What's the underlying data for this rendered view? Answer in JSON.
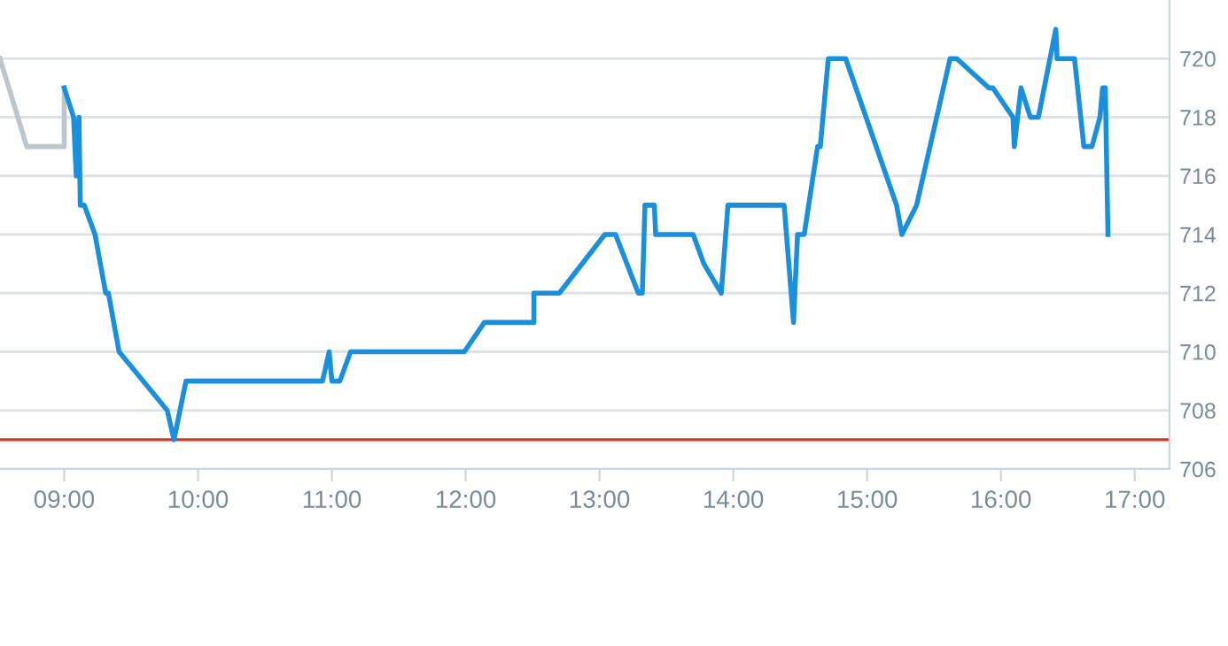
{
  "chart_data": {
    "type": "line",
    "series": [
      {
        "color": "#bcc6cc",
        "x": [
          8.52,
          8.72,
          9.0,
          9.0
        ],
        "values": [
          720,
          717,
          717,
          719
        ]
      },
      {
        "color": "#1a8fdc",
        "x": [
          9.0,
          9.07,
          9.09,
          9.11,
          9.12,
          9.15,
          9.23,
          9.31,
          9.33,
          9.41,
          9.77,
          9.82,
          9.91,
          10.93,
          10.98,
          11.0,
          11.06,
          11.14,
          11.99,
          12.14,
          12.51,
          12.51,
          12.7,
          13.04,
          13.12,
          13.29,
          13.32,
          13.34,
          13.41,
          13.42,
          13.7,
          13.78,
          13.91,
          13.96,
          14.38,
          14.45,
          14.48,
          14.53,
          14.63,
          14.65,
          14.71,
          14.84,
          15.22,
          15.26,
          15.37,
          15.62,
          15.67,
          15.91,
          15.94,
          16.09,
          16.1,
          16.15,
          16.22,
          16.28,
          16.41,
          16.42,
          16.55,
          16.62,
          16.68,
          16.74,
          16.76,
          16.78,
          16.8
        ],
        "values": [
          719,
          718,
          716,
          718,
          715,
          715,
          714,
          712,
          712,
          710,
          708,
          707,
          709,
          709,
          710,
          709,
          709,
          710,
          710,
          711,
          711,
          712,
          712,
          714,
          714,
          712,
          712,
          715,
          715,
          714,
          714,
          713,
          712,
          715,
          715,
          711,
          714,
          714,
          717,
          717,
          720,
          720,
          715,
          714,
          715,
          720,
          720,
          719,
          719,
          718,
          717,
          719,
          718,
          718,
          721,
          720,
          720,
          717,
          717,
          718,
          719,
          719,
          714
        ]
      }
    ],
    "xlim": [
      8.52,
      17.26
    ],
    "xticks": [
      {
        "value": 9,
        "label": "09:00"
      },
      {
        "value": 10,
        "label": "10:00"
      },
      {
        "value": 11,
        "label": "11:00"
      },
      {
        "value": 12,
        "label": "12:00"
      },
      {
        "value": 13,
        "label": "13:00"
      },
      {
        "value": 14,
        "label": "14:00"
      },
      {
        "value": 15,
        "label": "15:00"
      },
      {
        "value": 16,
        "label": "16:00"
      },
      {
        "value": 17,
        "label": "17:00"
      }
    ],
    "ylim": [
      706,
      722
    ],
    "yticks": [
      706,
      708,
      710,
      712,
      714,
      716,
      718,
      720
    ],
    "ref_lines": [
      {
        "axis": "y",
        "value": 707,
        "color": "#d0342c"
      }
    ],
    "grid": "y",
    "line_style": "solid",
    "marker": "none"
  }
}
